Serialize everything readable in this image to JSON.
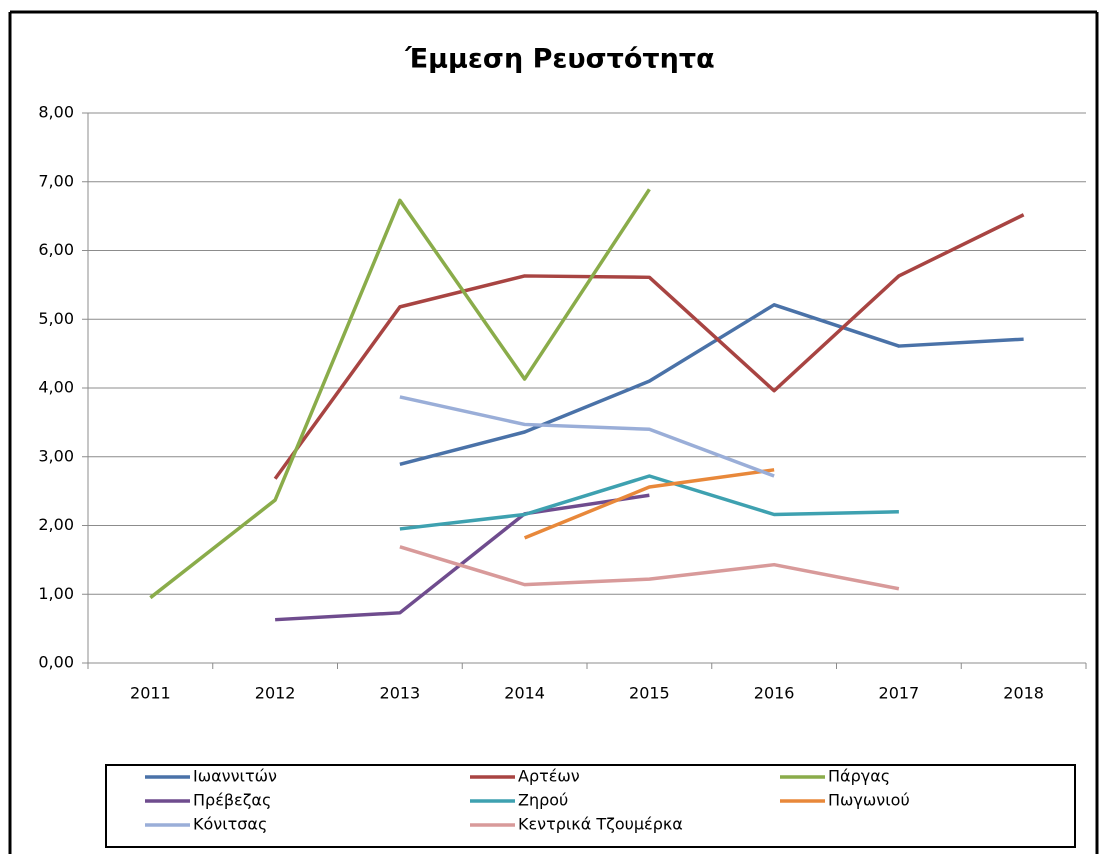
{
  "chart_data": {
    "type": "line",
    "title": "Έμμεση Ρευστότητα",
    "categories": [
      "2011",
      "2012",
      "2013",
      "2014",
      "2015",
      "2016",
      "2017",
      "2018"
    ],
    "ylim": [
      0,
      8
    ],
    "yticks": [
      {
        "value": 0,
        "label": "0,00"
      },
      {
        "value": 1,
        "label": "1,00"
      },
      {
        "value": 2,
        "label": "2,00"
      },
      {
        "value": 3,
        "label": "3,00"
      },
      {
        "value": 4,
        "label": "4,00"
      },
      {
        "value": 5,
        "label": "5,00"
      },
      {
        "value": 6,
        "label": "6,00"
      },
      {
        "value": 7,
        "label": "7,00"
      },
      {
        "value": 8,
        "label": "8,00"
      }
    ],
    "grid": true,
    "legend": "bottom",
    "series": [
      {
        "name": "Ιωαννιτών",
        "color": "#4a72a8",
        "values": [
          null,
          null,
          2.89,
          3.36,
          4.1,
          5.21,
          4.61,
          4.71
        ]
      },
      {
        "name": "Αρτέων",
        "color": "#a84442",
        "values": [
          null,
          2.68,
          5.18,
          5.63,
          5.61,
          3.96,
          5.63,
          6.52
        ]
      },
      {
        "name": "Πάργας",
        "color": "#8aac4a",
        "values": [
          0.95,
          2.37,
          6.73,
          4.13,
          6.89,
          null,
          null,
          null
        ]
      },
      {
        "name": "Πρέβεζας",
        "color": "#6f4c8e",
        "values": [
          null,
          0.63,
          0.73,
          2.17,
          2.44,
          null,
          null,
          null
        ]
      },
      {
        "name": "Ζηρού",
        "color": "#3ea1b0",
        "values": [
          null,
          null,
          1.95,
          2.16,
          2.72,
          2.16,
          2.2,
          null
        ]
      },
      {
        "name": "Πωγωνιού",
        "color": "#e8883a",
        "values": [
          null,
          null,
          null,
          1.82,
          2.56,
          2.81,
          null,
          null
        ]
      },
      {
        "name": "Κόνιτσας",
        "color": "#9aaed8",
        "values": [
          null,
          null,
          3.87,
          3.47,
          3.4,
          2.72,
          null,
          null
        ]
      },
      {
        "name": "Κεντρικά Τζουμέρκα",
        "color": "#d89a9a",
        "values": [
          null,
          null,
          1.69,
          1.14,
          1.22,
          1.43,
          1.08,
          null
        ]
      }
    ]
  }
}
